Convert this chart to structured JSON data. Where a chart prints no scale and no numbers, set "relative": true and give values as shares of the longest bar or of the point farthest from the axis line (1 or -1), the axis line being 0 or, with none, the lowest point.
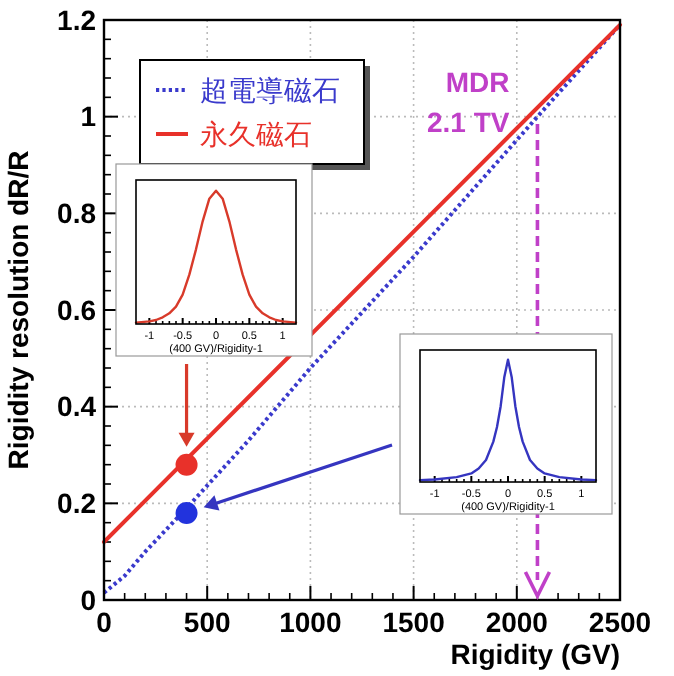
{
  "chart_data": [
    {
      "type": "line",
      "xlabel": "Rigidity (GV)",
      "ylabel": "Rigidity resolution dR/R",
      "xlim": [
        0,
        2500
      ],
      "ylim": [
        0,
        1.2
      ],
      "xticks": [
        0,
        500,
        1000,
        1500,
        2000,
        2500
      ],
      "yticks": [
        0,
        0.2,
        0.4,
        0.6,
        0.8,
        1,
        1.2
      ],
      "grid": true,
      "legend": "top left",
      "series": [
        {
          "name": "超電導磁石",
          "color": "#3a3acc",
          "line_style": "dotted",
          "x": [
            0,
            100,
            200,
            400,
            700,
            1000,
            1500,
            2100,
            2500
          ],
          "values": [
            0.015,
            0.05,
            0.1,
            0.19,
            0.33,
            0.48,
            0.71,
            1.0,
            1.19
          ]
        },
        {
          "name": "永久磁石",
          "color": "#e8312a",
          "line_style": "solid",
          "x": [
            0,
            2500
          ],
          "values": [
            0.12,
            1.19
          ]
        },
        {
          "type": "scatter",
          "color": "#e8312a",
          "marker": "circle",
          "x": [
            400
          ],
          "values": [
            0.28
          ]
        },
        {
          "type": "scatter",
          "color": "#2233dd",
          "marker": "circle",
          "x": [
            400
          ],
          "values": [
            0.18
          ]
        }
      ],
      "ref_lines": [
        {
          "axis": "x",
          "value": 2100,
          "label": "MDR\n2.1 TV",
          "color": "#c040c8",
          "line_style": "dashed"
        }
      ]
    },
    {
      "type": "line",
      "relative": true,
      "xlabel": "(400 GV)/Rigidity-1",
      "xlim": [
        -1.2,
        1.2
      ],
      "xticks": [
        -1,
        -0.5,
        0,
        0.5,
        1
      ],
      "tick_labels": "x",
      "series": [
        {
          "color": "#d83a2a",
          "x": [
            -1.2,
            -1,
            -0.9,
            -0.8,
            -0.7,
            -0.6,
            -0.5,
            -0.4,
            -0.3,
            -0.2,
            -0.1,
            0,
            0.1,
            0.2,
            0.3,
            0.4,
            0.5,
            0.6,
            0.7,
            0.8,
            0.9,
            1,
            1.2
          ],
          "values": [
            0.01,
            0.02,
            0.03,
            0.05,
            0.08,
            0.13,
            0.22,
            0.37,
            0.56,
            0.77,
            0.94,
            1,
            0.94,
            0.77,
            0.56,
            0.37,
            0.22,
            0.13,
            0.08,
            0.05,
            0.03,
            0.02,
            0.01
          ]
        }
      ]
    },
    {
      "type": "line",
      "relative": true,
      "xlabel": "(400 GV)/Rigidity-1",
      "xlim": [
        -1.2,
        1.2
      ],
      "xticks": [
        -1,
        -0.5,
        0,
        0.5,
        1
      ],
      "tick_labels": "x",
      "series": [
        {
          "color": "#3535c0",
          "x": [
            -1.2,
            -1,
            -0.7,
            -0.5,
            -0.4,
            -0.3,
            -0.2,
            -0.15,
            -0.1,
            -0.05,
            0,
            0.05,
            0.1,
            0.15,
            0.2,
            0.3,
            0.4,
            0.5,
            0.7,
            1,
            1.2
          ],
          "values": [
            0.015,
            0.02,
            0.04,
            0.07,
            0.11,
            0.18,
            0.33,
            0.45,
            0.62,
            0.86,
            1,
            0.86,
            0.62,
            0.45,
            0.33,
            0.18,
            0.11,
            0.07,
            0.04,
            0.02,
            0.015
          ]
        }
      ]
    }
  ]
}
